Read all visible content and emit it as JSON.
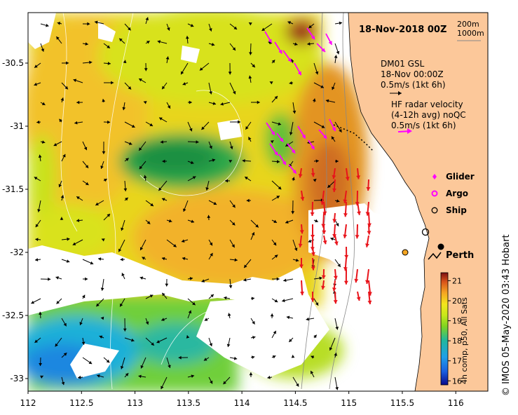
{
  "map": {
    "title": "18-Nov-2018 00Z",
    "x_ticks": [
      "112",
      "112.5",
      "113",
      "113.5",
      "114",
      "114.5",
      "115",
      "115.5",
      "116"
    ],
    "y_ticks": [
      "-30.5",
      "-31",
      "-31.5",
      "-32",
      "-32.5",
      "-33"
    ],
    "lon_range": [
      112,
      116.3
    ],
    "lat_range": [
      -33.1,
      -30.1
    ],
    "depth_legend": [
      "200m",
      "1000m"
    ],
    "model_label": [
      "DM01 GSL",
      "18-Nov 00:00Z",
      "0.5m/s (1kt 6h)"
    ],
    "radar_label": [
      "HF radar velocity",
      "(4-12h avg) noQC",
      "0.5m/s (1kt 6h)"
    ],
    "legend_items": [
      "Glider",
      "Argo",
      "Ship"
    ],
    "city": "Perth",
    "colorbar": {
      "ticks": [
        "16",
        "17",
        "18",
        "19",
        "20",
        "21"
      ],
      "label": "4h comp, p50, All Sats",
      "range": [
        15.8,
        21.4
      ]
    },
    "credit": "© IMOS 05-May-2020 03:43 Hobart"
  },
  "colors": {
    "land": "#fcc89a",
    "model_arrow": "#000000",
    "radar_arrow": "#ff00ff",
    "glider": "#ff00ff",
    "argo": "#ff00ff",
    "ship": "#000000",
    "warm_arrow": "#e8141b"
  },
  "icons": [
    "glider-icon",
    "argo-icon",
    "ship-icon",
    "perth-city-icon"
  ]
}
